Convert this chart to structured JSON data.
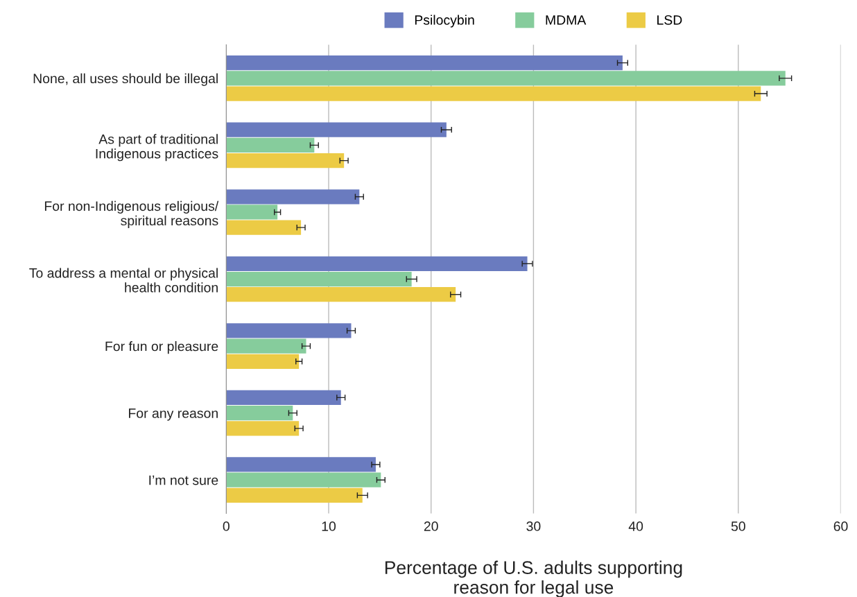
{
  "chart_data": {
    "type": "bar",
    "orientation": "horizontal",
    "categories": [
      "None, all uses should be illegal",
      "As part of traditional\nIndigenous practices",
      "For non-Indigenous religious/\nspiritual reasons",
      "To address a mental or physical\nhealth condition",
      "For fun or pleasure",
      "For any reason",
      "I’m not sure"
    ],
    "series": [
      {
        "name": "Psilocybin",
        "color": "#6a7bbf",
        "values": [
          38.7,
          21.5,
          13.0,
          29.4,
          12.2,
          11.2,
          14.6
        ],
        "errors": [
          0.5,
          0.5,
          0.4,
          0.5,
          0.4,
          0.4,
          0.4
        ]
      },
      {
        "name": "MDMA",
        "color": "#86cc9c",
        "values": [
          54.6,
          8.6,
          5.0,
          18.1,
          7.8,
          6.5,
          15.1
        ],
        "errors": [
          0.6,
          0.4,
          0.3,
          0.5,
          0.4,
          0.4,
          0.4
        ]
      },
      {
        "name": "LSD",
        "color": "#eccb45",
        "values": [
          52.2,
          11.5,
          7.3,
          22.4,
          7.1,
          7.1,
          13.3
        ],
        "errors": [
          0.6,
          0.4,
          0.4,
          0.5,
          0.3,
          0.4,
          0.5
        ]
      }
    ],
    "xlabel": "Percentage of U.S. adults supporting\nreason for legal use",
    "xlim": [
      0,
      60
    ],
    "xticks": [
      0,
      10,
      20,
      30,
      40,
      50,
      60
    ],
    "grid": "x",
    "legend": "top"
  }
}
